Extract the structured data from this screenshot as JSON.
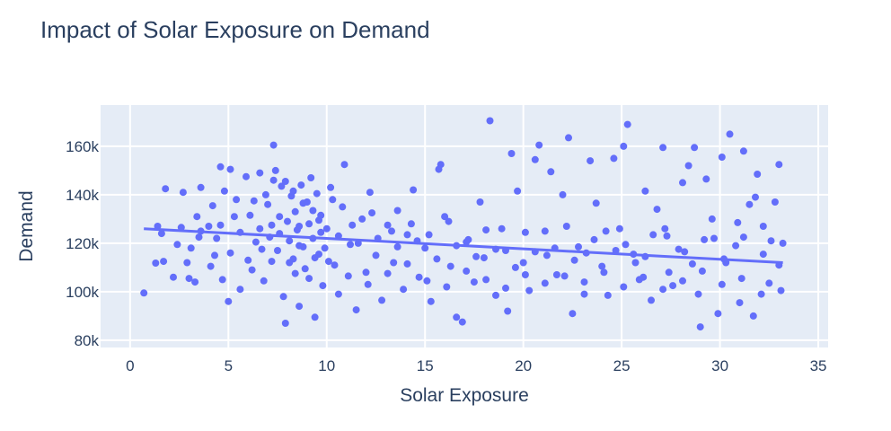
{
  "chart_data": {
    "type": "scatter",
    "title": "Impact of Solar Exposure on Demand",
    "xlabel": "Solar Exposure",
    "ylabel": "Demand",
    "xlim": [
      -1.5,
      35.5
    ],
    "ylim": [
      77000,
      177000
    ],
    "x_ticks": [
      0,
      5,
      10,
      15,
      20,
      25,
      30,
      35
    ],
    "x_tick_labels": [
      "0",
      "5",
      "10",
      "15",
      "20",
      "25",
      "30",
      "35"
    ],
    "y_ticks": [
      80000,
      100000,
      120000,
      140000,
      160000
    ],
    "y_tick_labels": [
      "80k",
      "100k",
      "120k",
      "140k",
      "160k"
    ],
    "grid": true,
    "legend": "none",
    "colors": {
      "marker": "#636efa",
      "plot_bg": "#e5ecf6",
      "grid": "#ffffff",
      "text": "#2a3f5f"
    },
    "series": [
      {
        "points": [
          [
            0.7,
            99500
          ],
          [
            1.3,
            111800
          ],
          [
            1.7,
            112500
          ],
          [
            1.8,
            142500
          ],
          [
            2.2,
            106000
          ],
          [
            2.7,
            141000
          ],
          [
            3.0,
            105500
          ],
          [
            3.3,
            104000
          ],
          [
            3.5,
            122500
          ],
          [
            3.6,
            143000
          ],
          [
            4.0,
            127000
          ],
          [
            4.3,
            115000
          ],
          [
            4.6,
            151500
          ],
          [
            4.7,
            105000
          ],
          [
            4.8,
            141500
          ],
          [
            5.0,
            96000
          ],
          [
            5.1,
            150500
          ],
          [
            5.3,
            131000
          ],
          [
            5.6,
            101000
          ],
          [
            5.9,
            147500
          ],
          [
            6.0,
            113000
          ],
          [
            6.2,
            109000
          ],
          [
            6.4,
            120500
          ],
          [
            6.6,
            149000
          ],
          [
            6.8,
            104500
          ],
          [
            7.0,
            136000
          ],
          [
            7.2,
            127500
          ],
          [
            7.3,
            160500
          ],
          [
            7.4,
            150000
          ],
          [
            7.5,
            117000
          ],
          [
            7.7,
            143500
          ],
          [
            7.8,
            98000
          ],
          [
            7.9,
            87000
          ],
          [
            8.0,
            129000
          ],
          [
            8.1,
            121000
          ],
          [
            8.2,
            139500
          ],
          [
            8.3,
            113500
          ],
          [
            8.4,
            133000
          ],
          [
            8.5,
            125500
          ],
          [
            8.6,
            94000
          ],
          [
            8.7,
            144000
          ],
          [
            8.8,
            118500
          ],
          [
            8.9,
            109500
          ],
          [
            9.0,
            137000
          ],
          [
            9.1,
            128000
          ],
          [
            9.2,
            147000
          ],
          [
            9.3,
            122000
          ],
          [
            9.4,
            89500
          ],
          [
            9.5,
            140500
          ],
          [
            9.6,
            115500
          ],
          [
            9.7,
            131500
          ],
          [
            9.8,
            102500
          ],
          [
            10.0,
            126000
          ],
          [
            10.2,
            143000
          ],
          [
            10.4,
            111000
          ],
          [
            10.6,
            99000
          ],
          [
            10.8,
            135000
          ],
          [
            10.9,
            152500
          ],
          [
            11.2,
            119500
          ],
          [
            11.5,
            92500
          ],
          [
            11.8,
            130000
          ],
          [
            12.0,
            108000
          ],
          [
            12.2,
            141000
          ],
          [
            12.5,
            115000
          ],
          [
            12.8,
            96500
          ],
          [
            13.1,
            127500
          ],
          [
            13.4,
            112000
          ],
          [
            13.6,
            133500
          ],
          [
            13.9,
            101000
          ],
          [
            14.1,
            123500
          ],
          [
            14.4,
            142000
          ],
          [
            14.7,
            106000
          ],
          [
            15.0,
            118000
          ],
          [
            15.3,
            96000
          ],
          [
            15.7,
            150500
          ],
          [
            15.8,
            152500
          ],
          [
            16.0,
            131000
          ],
          [
            16.3,
            110500
          ],
          [
            16.6,
            89500
          ],
          [
            16.9,
            87500
          ],
          [
            17.2,
            121500
          ],
          [
            17.5,
            104000
          ],
          [
            17.8,
            137000
          ],
          [
            18.0,
            114000
          ],
          [
            18.3,
            170500
          ],
          [
            18.6,
            98500
          ],
          [
            18.9,
            126000
          ],
          [
            19.2,
            92000
          ],
          [
            19.4,
            157000
          ],
          [
            19.7,
            141500
          ],
          [
            20.0,
            112000
          ],
          [
            20.3,
            100500
          ],
          [
            20.6,
            154500
          ],
          [
            20.8,
            160500
          ],
          [
            21.1,
            125000
          ],
          [
            21.4,
            149500
          ],
          [
            21.7,
            107000
          ],
          [
            22.0,
            140000
          ],
          [
            22.3,
            163500
          ],
          [
            22.5,
            91000
          ],
          [
            22.8,
            118500
          ],
          [
            23.1,
            99000
          ],
          [
            23.4,
            154000
          ],
          [
            23.7,
            136500
          ],
          [
            24.0,
            110500
          ],
          [
            24.3,
            98500
          ],
          [
            24.6,
            155000
          ],
          [
            24.9,
            126000
          ],
          [
            25.1,
            160000
          ],
          [
            25.3,
            169000
          ],
          [
            25.6,
            115500
          ],
          [
            25.9,
            105000
          ],
          [
            26.2,
            141500
          ],
          [
            26.5,
            96500
          ],
          [
            26.8,
            134000
          ],
          [
            27.1,
            159500
          ],
          [
            27.3,
            123000
          ],
          [
            27.6,
            102500
          ],
          [
            27.9,
            117500
          ],
          [
            28.1,
            145000
          ],
          [
            28.4,
            152000
          ],
          [
            28.7,
            159500
          ],
          [
            28.9,
            99000
          ],
          [
            29.0,
            85500
          ],
          [
            29.3,
            146500
          ],
          [
            29.6,
            130000
          ],
          [
            29.9,
            91000
          ],
          [
            30.1,
            155500
          ],
          [
            30.3,
            112000
          ],
          [
            30.5,
            165000
          ],
          [
            30.8,
            119000
          ],
          [
            31.0,
            95500
          ],
          [
            31.2,
            158000
          ],
          [
            31.5,
            136000
          ],
          [
            31.7,
            90000
          ],
          [
            31.9,
            148500
          ],
          [
            32.2,
            127000
          ],
          [
            32.5,
            103500
          ],
          [
            32.8,
            137000
          ],
          [
            33.0,
            152500
          ],
          [
            33.1,
            100500
          ],
          [
            33.2,
            120000
          ],
          [
            33.0,
            111000
          ],
          [
            32.6,
            121000
          ],
          [
            31.8,
            139000
          ],
          [
            30.9,
            128500
          ],
          [
            29.7,
            122000
          ],
          [
            28.6,
            111500
          ],
          [
            27.4,
            108000
          ],
          [
            26.6,
            123500
          ],
          [
            25.7,
            112000
          ],
          [
            24.7,
            117000
          ],
          [
            23.6,
            121500
          ],
          [
            22.6,
            113000
          ],
          [
            21.6,
            118000
          ],
          [
            20.6,
            116500
          ],
          [
            19.6,
            110000
          ],
          [
            18.6,
            117500
          ],
          [
            17.6,
            114500
          ],
          [
            16.6,
            119000
          ],
          [
            15.6,
            113500
          ],
          [
            14.6,
            121000
          ],
          [
            13.6,
            118500
          ],
          [
            12.6,
            122000
          ],
          [
            11.6,
            120000
          ],
          [
            10.6,
            123000
          ],
          [
            9.6,
            129500
          ],
          [
            8.6,
            127000
          ],
          [
            7.6,
            131000
          ],
          [
            6.6,
            126000
          ],
          [
            5.6,
            124500
          ],
          [
            4.6,
            127500
          ],
          [
            3.6,
            125000
          ],
          [
            2.6,
            126500
          ],
          [
            1.6,
            124000
          ],
          [
            4.2,
            135500
          ],
          [
            6.9,
            140000
          ],
          [
            7.9,
            145500
          ],
          [
            8.8,
            136500
          ],
          [
            9.9,
            118000
          ],
          [
            10.3,
            138000
          ],
          [
            11.3,
            127500
          ],
          [
            12.3,
            132500
          ],
          [
            13.3,
            125000
          ],
          [
            14.3,
            128000
          ],
          [
            15.2,
            123500
          ],
          [
            16.2,
            129000
          ],
          [
            17.1,
            120500
          ],
          [
            18.1,
            125500
          ],
          [
            19.1,
            117000
          ],
          [
            20.1,
            124500
          ],
          [
            21.2,
            115000
          ],
          [
            22.2,
            127000
          ],
          [
            23.2,
            116000
          ],
          [
            24.2,
            125000
          ],
          [
            25.2,
            119500
          ],
          [
            26.2,
            114500
          ],
          [
            27.2,
            126000
          ],
          [
            28.2,
            116500
          ],
          [
            29.2,
            121500
          ],
          [
            30.2,
            113500
          ],
          [
            31.2,
            122500
          ],
          [
            32.2,
            115500
          ],
          [
            3.1,
            118000
          ],
          [
            4.1,
            110500
          ],
          [
            5.1,
            116000
          ],
          [
            6.1,
            131500
          ],
          [
            7.1,
            122500
          ],
          [
            8.1,
            112000
          ],
          [
            9.1,
            105500
          ],
          [
            10.1,
            112500
          ],
          [
            11.1,
            106500
          ],
          [
            12.1,
            103000
          ],
          [
            13.1,
            107500
          ],
          [
            14.1,
            111500
          ],
          [
            15.1,
            104500
          ],
          [
            16.1,
            102000
          ],
          [
            17.1,
            108500
          ],
          [
            18.1,
            105000
          ],
          [
            19.1,
            101500
          ],
          [
            20.1,
            107000
          ],
          [
            21.1,
            103500
          ],
          [
            22.1,
            106500
          ],
          [
            23.1,
            104000
          ],
          [
            24.1,
            108000
          ],
          [
            25.1,
            102000
          ],
          [
            26.1,
            106000
          ],
          [
            27.1,
            101000
          ],
          [
            28.1,
            104500
          ],
          [
            29.1,
            108500
          ],
          [
            30.1,
            103000
          ],
          [
            31.1,
            105500
          ],
          [
            32.1,
            99000
          ],
          [
            6.3,
            137500
          ],
          [
            7.3,
            146000
          ],
          [
            8.3,
            141500
          ],
          [
            9.3,
            133500
          ],
          [
            7.6,
            124000
          ],
          [
            8.6,
            119000
          ],
          [
            9.4,
            114000
          ],
          [
            6.7,
            117500
          ],
          [
            7.2,
            112500
          ],
          [
            8.4,
            107500
          ],
          [
            9.7,
            124500
          ],
          [
            5.4,
            138000
          ],
          [
            4.4,
            122000
          ],
          [
            3.4,
            131000
          ],
          [
            2.4,
            119500
          ],
          [
            1.4,
            127000
          ],
          [
            2.9,
            112000
          ]
        ]
      }
    ],
    "trendline": {
      "x": [
        0.7,
        33.2
      ],
      "y": [
        126000,
        112000
      ]
    }
  }
}
